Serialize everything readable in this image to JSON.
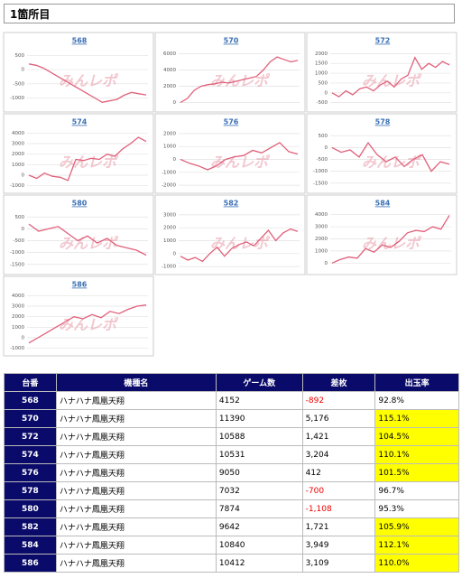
{
  "header": {
    "title": "1箇所目"
  },
  "watermark": "みんレポ",
  "chart_data": [
    {
      "type": "line",
      "title": "568",
      "color": "#e0607a",
      "ylim": [
        -1300,
        700
      ],
      "yticks": [
        500,
        0,
        -500,
        -1000
      ],
      "grid": true,
      "values": [
        200,
        150,
        50,
        -100,
        -250,
        -400,
        -550,
        -700,
        -850,
        -1000,
        -1150,
        -1100,
        -1050,
        -900,
        -800,
        -850,
        -892
      ]
    },
    {
      "type": "line",
      "title": "570",
      "color": "#e0607a",
      "ylim": [
        -500,
        6500
      ],
      "yticks": [
        0,
        2000,
        4000,
        6000
      ],
      "grid": true,
      "values": [
        0,
        500,
        1500,
        2000,
        2200,
        2300,
        2500,
        2400,
        2600,
        2800,
        3000,
        3200,
        4000,
        5000,
        5600,
        5300,
        5000,
        5176
      ]
    },
    {
      "type": "line",
      "title": "572",
      "color": "#e0607a",
      "ylim": [
        -700,
        2200
      ],
      "yticks": [
        -500,
        0,
        500,
        1000,
        1500,
        2000
      ],
      "grid": true,
      "values": [
        0,
        -200,
        100,
        -100,
        200,
        300,
        100,
        400,
        600,
        300,
        700,
        900,
        1800,
        1200,
        1500,
        1300,
        1600,
        1421
      ]
    },
    {
      "type": "line",
      "title": "574",
      "color": "#e0607a",
      "ylim": [
        -1200,
        4200
      ],
      "yticks": [
        -1000,
        0,
        1000,
        2000,
        3000,
        4000
      ],
      "grid": true,
      "values": [
        0,
        -300,
        200,
        -100,
        -200,
        -500,
        1500,
        1400,
        1600,
        1500,
        2000,
        1800,
        2500,
        3000,
        3600,
        3204
      ]
    },
    {
      "type": "line",
      "title": "576",
      "color": "#e0607a",
      "ylim": [
        -2200,
        2200
      ],
      "yticks": [
        -2000,
        -1000,
        0,
        1000,
        2000
      ],
      "grid": true,
      "values": [
        0,
        -300,
        -500,
        -800,
        -500,
        0,
        200,
        300,
        700,
        500,
        900,
        1300,
        600,
        412
      ]
    },
    {
      "type": "line",
      "title": "578",
      "color": "#e0607a",
      "ylim": [
        -1700,
        700
      ],
      "yticks": [
        500,
        0,
        -500,
        -1000,
        -1500
      ],
      "grid": true,
      "values": [
        0,
        -200,
        -100,
        -400,
        200,
        -300,
        -600,
        -400,
        -800,
        -500,
        -300,
        -1000,
        -600,
        -700
      ]
    },
    {
      "type": "line",
      "title": "580",
      "color": "#e0607a",
      "ylim": [
        -1700,
        700
      ],
      "yticks": [
        500,
        0,
        -500,
        -1000,
        -1500
      ],
      "grid": true,
      "values": [
        200,
        -100,
        0,
        100,
        -200,
        -500,
        -300,
        -600,
        -400,
        -700,
        -800,
        -900,
        -1108
      ]
    },
    {
      "type": "line",
      "title": "582",
      "color": "#e0607a",
      "ylim": [
        -1200,
        3200
      ],
      "yticks": [
        -1000,
        0,
        1000,
        2000,
        3000
      ],
      "grid": true,
      "values": [
        -200,
        -500,
        -300,
        -600,
        0,
        500,
        -200,
        400,
        700,
        900,
        600,
        1200,
        1800,
        1000,
        1600,
        1900,
        1721
      ]
    },
    {
      "type": "line",
      "title": "584",
      "color": "#e0607a",
      "ylim": [
        -500,
        4200
      ],
      "yticks": [
        0,
        1000,
        2000,
        3000,
        4000
      ],
      "grid": true,
      "values": [
        0,
        300,
        500,
        400,
        1200,
        900,
        1500,
        1300,
        1800,
        2500,
        2700,
        2600,
        3000,
        2800,
        3949
      ]
    },
    {
      "type": "line",
      "title": "586",
      "color": "#e0607a",
      "ylim": [
        -1200,
        4200
      ],
      "yticks": [
        -1000,
        0,
        1000,
        2000,
        3000,
        4000
      ],
      "grid": true,
      "values": [
        -500,
        0,
        500,
        1000,
        1500,
        2000,
        1800,
        2200,
        1900,
        2500,
        2300,
        2700,
        3000,
        3109
      ]
    }
  ],
  "table": {
    "header": [
      "台番",
      "機種名",
      "ゲーム数",
      "差枚",
      "出玉率"
    ],
    "rows": [
      [
        "568",
        "ハナハナ鳳凰天翔",
        "4152",
        "-892",
        "92.8%"
      ],
      [
        "570",
        "ハナハナ鳳凰天翔",
        "11390",
        "5,176",
        "115.1%"
      ],
      [
        "572",
        "ハナハナ鳳凰天翔",
        "10588",
        "1,421",
        "104.5%"
      ],
      [
        "574",
        "ハナハナ鳳凰天翔",
        "10531",
        "3,204",
        "110.1%"
      ],
      [
        "576",
        "ハナハナ鳳凰天翔",
        "9050",
        "412",
        "101.5%"
      ],
      [
        "578",
        "ハナハナ鳳凰天翔",
        "7032",
        "-700",
        "96.7%"
      ],
      [
        "580",
        "ハナハナ鳳凰天翔",
        "7874",
        "-1,108",
        "95.3%"
      ],
      [
        "582",
        "ハナハナ鳳凰天翔",
        "9642",
        "1,721",
        "105.9%"
      ],
      [
        "584",
        "ハナハナ鳳凰天翔",
        "10840",
        "3,949",
        "112.1%"
      ],
      [
        "586",
        "ハナハナ鳳凰天翔",
        "10412",
        "3,109",
        "110.0%"
      ]
    ]
  }
}
